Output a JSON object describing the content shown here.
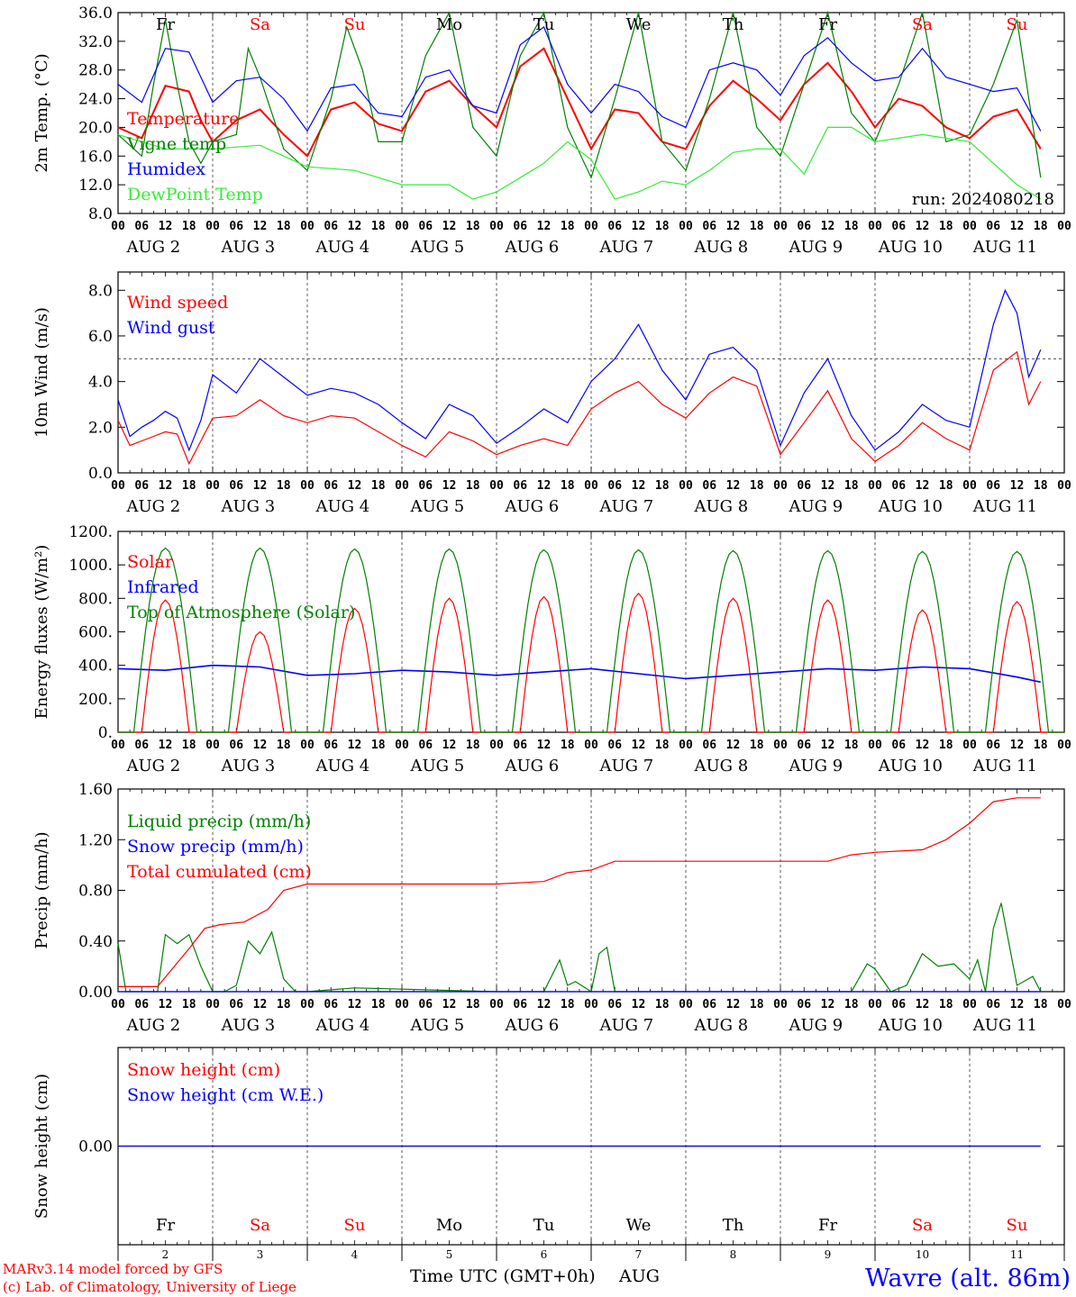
{
  "footer": {
    "model_line1": "MARv3.14 model forced by GFS",
    "model_line2": "(c) Lab. of Climatology, University of Liege",
    "xlabel": "Time UTC (GMT+0h)",
    "month": "AUG",
    "location": "Wavre (alt. 86m)"
  },
  "colors": {
    "red": "#ff0000",
    "green": "#008000",
    "blue": "#0000ff",
    "lightgreen": "#33ee33",
    "purple": "#800080"
  },
  "days": {
    "names": [
      "Fr",
      "Sa",
      "Su",
      "Mo",
      "Tu",
      "We",
      "Th",
      "Fr",
      "Sa",
      "Su"
    ],
    "weekend": [
      false,
      true,
      true,
      false,
      false,
      false,
      false,
      false,
      true,
      true
    ],
    "dates": [
      "AUG  2",
      "AUG  3",
      "AUG  4",
      "AUG  5",
      "AUG  6",
      "AUG  7",
      "AUG  8",
      "AUG  9",
      "AUG 10",
      "AUG 11"
    ],
    "numbers": [
      "2",
      "3",
      "4",
      "5",
      "6",
      "7",
      "8",
      "9",
      "10",
      "11"
    ],
    "hour_labels": [
      "00",
      "06",
      "12",
      "18"
    ],
    "final_hour_label": "00"
  },
  "chart_data": [
    {
      "type": "line",
      "ylabel": "2m Temp. (°C)",
      "ylim": [
        8,
        36
      ],
      "yticks": [
        "8.0",
        "12.0",
        "16.0",
        "20.0",
        "24.0",
        "28.0",
        "32.0",
        "36.0"
      ],
      "run_label": "run: 2024080218",
      "x_unit": "hours since 2024-08-02 00 UTC",
      "series": [
        {
          "name": "Temperature",
          "color": "red",
          "x": [
            0,
            6,
            12,
            18,
            21,
            24,
            30,
            36,
            42,
            48,
            54,
            60,
            66,
            72,
            78,
            84,
            90,
            96,
            102,
            108,
            114,
            120,
            126,
            132,
            138,
            144,
            150,
            156,
            162,
            168,
            174,
            180,
            186,
            192,
            198,
            204,
            210,
            216,
            222,
            228,
            234
          ],
          "values": [
            20,
            18.5,
            25.8,
            25,
            21,
            18,
            21,
            22.5,
            19,
            16,
            22.5,
            23.5,
            20.5,
            19.5,
            25,
            26.5,
            23,
            20,
            28.5,
            31,
            24,
            17,
            22.5,
            22,
            18,
            17,
            23,
            26.5,
            24,
            21,
            26,
            29,
            25,
            20,
            24,
            23,
            20,
            18.5,
            21.5,
            22.5,
            17
          ]
        },
        {
          "name": "Vigne temp",
          "color": "green",
          "x": [
            0,
            6,
            9,
            12,
            15,
            18,
            21,
            24,
            30,
            33,
            36,
            42,
            48,
            54,
            58,
            62,
            66,
            72,
            78,
            84,
            90,
            96,
            102,
            108,
            114,
            120,
            126,
            132,
            138,
            144,
            150,
            156,
            162,
            168,
            174,
            180,
            186,
            192,
            198,
            204,
            210,
            216,
            222,
            228,
            234
          ],
          "values": [
            19,
            16,
            26,
            35,
            26,
            18,
            15,
            18,
            19,
            31,
            27,
            17,
            14,
            24,
            34,
            28,
            18,
            18,
            30,
            36,
            20,
            16,
            30,
            36,
            20,
            13,
            24,
            36,
            18,
            14,
            24,
            36,
            20,
            16,
            26,
            36,
            22,
            18,
            26,
            36,
            18,
            19,
            26,
            35,
            13
          ]
        },
        {
          "name": "Humidex",
          "color": "blue",
          "x": [
            0,
            6,
            12,
            18,
            24,
            30,
            36,
            42,
            48,
            54,
            60,
            66,
            72,
            78,
            84,
            90,
            96,
            102,
            108,
            114,
            120,
            126,
            132,
            138,
            144,
            150,
            156,
            162,
            168,
            174,
            180,
            186,
            192,
            198,
            204,
            210,
            216,
            222,
            228,
            234
          ],
          "values": [
            26,
            23.5,
            31,
            30.5,
            23.5,
            26.5,
            27,
            24,
            19.5,
            25.5,
            26,
            22,
            21.5,
            27,
            28,
            23,
            22,
            31.5,
            34,
            26,
            22,
            26,
            25,
            21.5,
            20,
            28,
            29,
            28,
            24.5,
            30,
            32.5,
            29,
            26.5,
            27,
            31,
            27,
            26,
            25,
            25.5,
            19.5
          ]
        },
        {
          "name": "DewPoint Temp",
          "color": "lightgreen",
          "x": [
            0,
            12,
            24,
            36,
            48,
            60,
            72,
            84,
            90,
            96,
            102,
            108,
            114,
            120,
            126,
            132,
            138,
            144,
            150,
            156,
            162,
            168,
            174,
            180,
            186,
            192,
            204,
            216,
            228,
            234
          ],
          "values": [
            19,
            17,
            17,
            17.5,
            14.5,
            14,
            12,
            12,
            10,
            11,
            13,
            15,
            18,
            15.5,
            10,
            11,
            12.5,
            12,
            14,
            16.5,
            17,
            17,
            13.5,
            20,
            20,
            18,
            19,
            18,
            12,
            10
          ]
        }
      ]
    },
    {
      "type": "line",
      "ylabel": "10m Wind (m/s)",
      "ylim": [
        0,
        8.8
      ],
      "yticks": [
        "0.0",
        "2.0",
        "4.0",
        "6.0",
        "8.0"
      ],
      "reference_line": 5,
      "x_unit": "hours since 2024-08-02 00 UTC",
      "series": [
        {
          "name": "Wind speed",
          "color": "red",
          "x": [
            0,
            3,
            6,
            9,
            12,
            15,
            18,
            21,
            24,
            30,
            36,
            42,
            48,
            54,
            60,
            66,
            72,
            78,
            84,
            90,
            96,
            102,
            108,
            114,
            120,
            126,
            132,
            138,
            144,
            150,
            156,
            162,
            168,
            174,
            180,
            186,
            192,
            198,
            204,
            210,
            216,
            222,
            228,
            231,
            234
          ],
          "values": [
            2.3,
            1.2,
            1.4,
            1.6,
            1.8,
            1.7,
            0.4,
            1.4,
            2.4,
            2.5,
            3.2,
            2.5,
            2.2,
            2.5,
            2.4,
            1.8,
            1.2,
            0.7,
            1.8,
            1.4,
            0.8,
            1.2,
            1.5,
            1.2,
            2.8,
            3.5,
            4.0,
            3.0,
            2.4,
            3.5,
            4.2,
            3.8,
            0.8,
            2.2,
            3.6,
            1.5,
            0.5,
            1.2,
            2.2,
            1.5,
            1.0,
            4.5,
            5.3,
            3.0,
            4.0
          ]
        },
        {
          "name": "Wind gust",
          "color": "blue",
          "x": [
            0,
            3,
            6,
            9,
            12,
            15,
            18,
            21,
            24,
            30,
            36,
            42,
            48,
            54,
            60,
            66,
            72,
            78,
            84,
            90,
            96,
            102,
            108,
            114,
            120,
            126,
            132,
            138,
            144,
            150,
            156,
            162,
            168,
            174,
            180,
            186,
            192,
            198,
            204,
            210,
            216,
            222,
            225,
            228,
            231,
            234
          ],
          "values": [
            3.2,
            1.6,
            2.0,
            2.3,
            2.7,
            2.4,
            1.0,
            2.3,
            4.3,
            3.5,
            5.0,
            4.2,
            3.4,
            3.7,
            3.5,
            3.0,
            2.2,
            1.5,
            3.0,
            2.5,
            1.3,
            2.0,
            2.8,
            2.2,
            4.0,
            5.0,
            6.5,
            4.5,
            3.2,
            5.2,
            5.5,
            4.5,
            1.2,
            3.5,
            5.0,
            2.5,
            1.0,
            1.8,
            3.0,
            2.3,
            2.0,
            6.5,
            8.0,
            7.0,
            4.2,
            5.4
          ]
        }
      ]
    },
    {
      "type": "line",
      "ylabel": "Energy fluxes (W/m²)",
      "ylim": [
        0,
        1200
      ],
      "yticks": [
        "0.",
        "200.",
        "400.",
        "600.",
        "800.",
        "1000.",
        "1200."
      ],
      "x_unit": "hours since 2024-08-02 00 UTC",
      "series": [
        {
          "name": "Solar",
          "color": "red",
          "daily_peak": [
            790,
            600,
            740,
            800,
            810,
            830,
            800,
            790,
            730,
            780
          ]
        },
        {
          "name": "Infrared",
          "color": "blue",
          "x": [
            0,
            12,
            24,
            36,
            48,
            60,
            72,
            84,
            96,
            108,
            120,
            132,
            144,
            156,
            168,
            180,
            192,
            204,
            216,
            228,
            234
          ],
          "values": [
            380,
            370,
            400,
            390,
            340,
            350,
            370,
            360,
            340,
            360,
            380,
            350,
            320,
            340,
            360,
            380,
            370,
            390,
            380,
            330,
            300
          ]
        },
        {
          "name": "Top of Atmosphere (Solar)",
          "color": "green",
          "daily_peak": [
            1100,
            1100,
            1095,
            1095,
            1090,
            1090,
            1085,
            1085,
            1080,
            1080
          ]
        }
      ]
    },
    {
      "type": "line",
      "ylabel": "Precip (mm/h)",
      "ylim": [
        0,
        1.6
      ],
      "yticks": [
        "0.00",
        "0.40",
        "0.80",
        "1.20",
        "1.60"
      ],
      "x_unit": "hours since 2024-08-02 00 UTC",
      "series": [
        {
          "name": "Liquid precip (mm/h)",
          "color": "green",
          "x": [
            0,
            2,
            6,
            10,
            12,
            15,
            18,
            21,
            24,
            27,
            30,
            33,
            36,
            39,
            42,
            45,
            48,
            60,
            96,
            108,
            112,
            114,
            116,
            120,
            122,
            124,
            126,
            128,
            130,
            132,
            186,
            190,
            192,
            196,
            200,
            204,
            208,
            212,
            216,
            218,
            220,
            222,
            224,
            228,
            232,
            234
          ],
          "values": [
            0.38,
            0,
            0,
            0,
            0.45,
            0.38,
            0.45,
            0.2,
            0,
            0,
            0.05,
            0.4,
            0.3,
            0.47,
            0.1,
            0,
            0,
            0.03,
            0,
            0,
            0.25,
            0.05,
            0.08,
            0,
            0.3,
            0.35,
            0,
            0,
            0,
            0,
            0,
            0.22,
            0.18,
            0,
            0.05,
            0.3,
            0.2,
            0.22,
            0.1,
            0.25,
            0,
            0.5,
            0.7,
            0.05,
            0.12,
            0
          ]
        },
        {
          "name": "Snow precip (mm/h)",
          "color": "blue",
          "x": [
            0,
            234
          ],
          "values": [
            0,
            0
          ]
        },
        {
          "name": "Total cumulated (cm)",
          "color": "red",
          "x": [
            0,
            10,
            18,
            22,
            26,
            32,
            38,
            42,
            48,
            72,
            96,
            108,
            114,
            120,
            126,
            132,
            156,
            180,
            186,
            192,
            204,
            210,
            216,
            222,
            228,
            234
          ],
          "values": [
            0.04,
            0.04,
            0.34,
            0.5,
            0.53,
            0.55,
            0.65,
            0.8,
            0.85,
            0.85,
            0.85,
            0.87,
            0.94,
            0.96,
            1.03,
            1.03,
            1.03,
            1.03,
            1.08,
            1.1,
            1.12,
            1.2,
            1.33,
            1.5,
            1.53,
            1.53
          ]
        }
      ]
    },
    {
      "type": "line",
      "ylabel": "Snow height (cm)",
      "ylim": [
        -1,
        1
      ],
      "yticks": [
        "0.00"
      ],
      "x_unit": "hours since 2024-08-02 00 UTC",
      "series": [
        {
          "name": "Snow height (cm)",
          "color": "red",
          "x": [
            0,
            234
          ],
          "values": [
            0,
            0
          ]
        },
        {
          "name": "Snow height (cm W.E.)",
          "color": "blue",
          "x": [
            0,
            234
          ],
          "values": [
            0,
            0
          ]
        }
      ]
    }
  ]
}
